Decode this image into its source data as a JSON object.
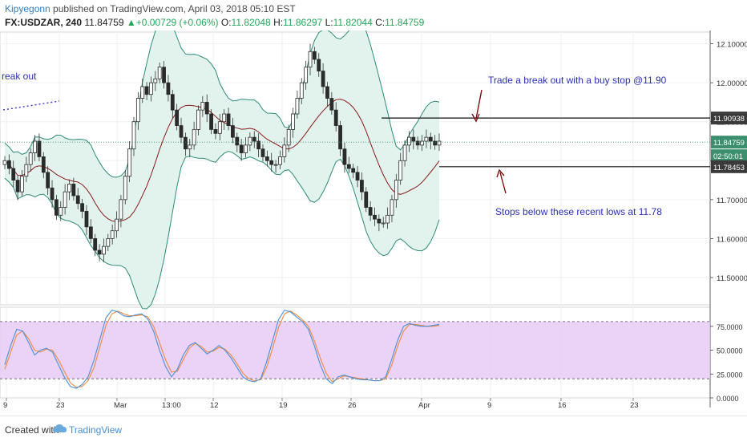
{
  "header": {
    "author": "Kipyegonn",
    "published": " published on TradingView.com, April 03, 2018 05:10 EST",
    "symbol": "FX:USDZAR, 240",
    "last": "11.84759",
    "change_arrow": "▲",
    "change": "+0.00729 (+0.06%)",
    "o_label": "O:",
    "o_val": "11.82048",
    "h_label": "H:",
    "h_val": "11.86297",
    "l_label": "L:",
    "l_val": "11.82044",
    "c_label": "C:",
    "c_val": "11.84759"
  },
  "footer": {
    "created_with": "Created with",
    "brand": "TradingView"
  },
  "colors": {
    "up": "#26a69a",
    "down": "#8b1d1d",
    "candle_body": "#2e7d32",
    "band": "#2e8b77",
    "band_fill": "#dff2ec",
    "basis": "#8b1a1a",
    "stoch_k": "#4a90d9",
    "stoch_d": "#f08a3c",
    "stoch_fill": "#e6c8f5",
    "annot": "#2b2fb7",
    "arrow": "#7a1010",
    "price_tag": "#3a3a3a",
    "now_tag": "#3c8f6e"
  },
  "chart_data": [
    {
      "type": "candlestick",
      "ylim": [
        11.43,
        12.13
      ],
      "y_ticks": [
        "12.10000",
        "12.00000",
        "11.90000",
        "11.80000",
        "11.70000",
        "11.60000",
        "11.50000"
      ],
      "x_ticks": [
        "9",
        "23",
        "Mar",
        "13:00",
        "12",
        "19",
        "26",
        "Apr",
        "9",
        "16",
        "23"
      ],
      "closes": [
        11.8,
        11.78,
        11.75,
        11.72,
        11.76,
        11.79,
        11.82,
        11.85,
        11.81,
        11.77,
        11.73,
        11.7,
        11.66,
        11.68,
        11.72,
        11.74,
        11.71,
        11.69,
        11.67,
        11.63,
        11.6,
        11.57,
        11.56,
        11.58,
        11.6,
        11.62,
        11.65,
        11.7,
        11.76,
        11.83,
        11.9,
        11.96,
        11.99,
        11.97,
        12.0,
        12.01,
        12.04,
        12.0,
        11.97,
        11.93,
        11.89,
        11.86,
        11.83,
        11.84,
        11.88,
        11.93,
        11.95,
        11.92,
        11.88,
        11.87,
        11.9,
        11.92,
        11.89,
        11.86,
        11.84,
        11.82,
        11.84,
        11.86,
        11.85,
        11.83,
        11.81,
        11.8,
        11.79,
        11.79,
        11.81,
        11.84,
        11.88,
        11.92,
        11.96,
        12.0,
        12.04,
        12.08,
        12.06,
        12.03,
        11.99,
        11.96,
        11.93,
        11.89,
        11.83,
        11.79,
        11.78,
        11.77,
        11.75,
        11.72,
        11.68,
        11.66,
        11.65,
        11.64,
        11.64,
        11.66,
        11.7,
        11.75,
        11.8,
        11.84,
        11.86,
        11.85,
        11.84,
        11.85,
        11.86,
        11.85,
        11.84,
        11.85
      ],
      "bollinger_upper_note": "upper/lower/basis bands drawn around closes",
      "levels": [
        {
          "label": "11.90938",
          "value": 11.90938
        },
        {
          "label": "11.84759",
          "value": 11.84759
        },
        {
          "label": "02:50:01",
          "value": 11.828
        },
        {
          "label": "11.78453",
          "value": 11.78453
        }
      ],
      "annotations": [
        {
          "text": "Trade a break out with a buy stop @11.90"
        },
        {
          "text": "Stops below these recent lows at 11.78"
        },
        {
          "text": "reak out"
        }
      ]
    },
    {
      "type": "line",
      "name": "stochastic",
      "ylim": [
        0,
        95
      ],
      "y_ticks": [
        "75.0000",
        "50.0000",
        "25.0000",
        "0.0000"
      ],
      "band": [
        20,
        80
      ],
      "k": [
        35,
        55,
        72,
        70,
        58,
        45,
        50,
        52,
        48,
        35,
        22,
        12,
        10,
        14,
        22,
        40,
        62,
        84,
        92,
        90,
        86,
        85,
        87,
        88,
        83,
        70,
        50,
        33,
        22,
        30,
        45,
        55,
        58,
        52,
        46,
        50,
        55,
        50,
        42,
        32,
        22,
        18,
        17,
        20,
        38,
        60,
        82,
        92,
        90,
        85,
        80,
        72,
        55,
        35,
        20,
        15,
        22,
        24,
        22,
        20,
        19,
        19,
        18,
        18,
        22,
        40,
        60,
        75,
        78,
        76,
        75,
        75,
        76,
        77
      ],
      "d": [
        30,
        48,
        66,
        70,
        62,
        50,
        48,
        51,
        50,
        40,
        28,
        16,
        11,
        12,
        18,
        32,
        54,
        76,
        88,
        91,
        88,
        86,
        86,
        87,
        85,
        75,
        58,
        40,
        27,
        28,
        40,
        52,
        57,
        54,
        48,
        49,
        53,
        51,
        45,
        36,
        26,
        20,
        18,
        19,
        32,
        52,
        74,
        88,
        91,
        87,
        82,
        75,
        60,
        42,
        26,
        17,
        20,
        23,
        22,
        21,
        20,
        19,
        18,
        18,
        20,
        34,
        54,
        70,
        77,
        77,
        76,
        75,
        75,
        76
      ]
    }
  ]
}
